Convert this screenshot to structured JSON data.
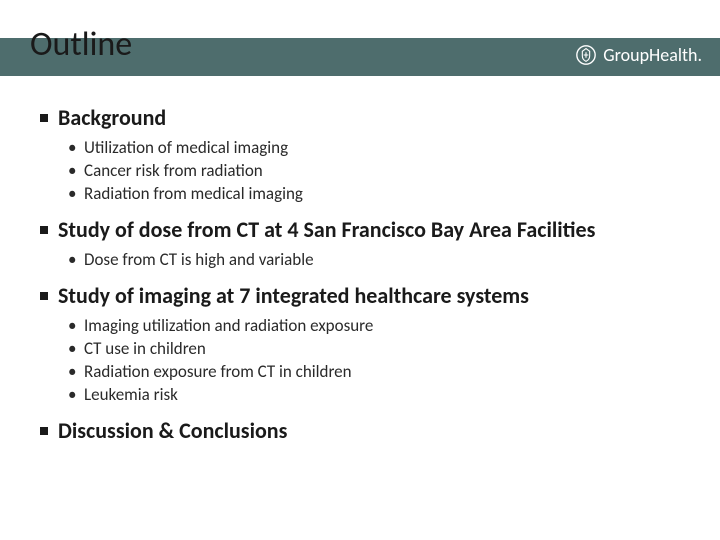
{
  "header": {
    "title": "Outline",
    "brand_text": "GroupHealth.",
    "band_color": "#4e6d6d",
    "title_color": "#1a1a1a",
    "brand_color": "#ffffff"
  },
  "sections": [
    {
      "heading": "Background",
      "items": [
        "Utilization of medical imaging",
        "Cancer risk from radiation",
        "Radiation from medical imaging"
      ]
    },
    {
      "heading": "Study of dose from CT at 4 San Francisco Bay Area Facilities",
      "items": [
        "Dose from CT is high and variable"
      ]
    },
    {
      "heading": "Study of imaging at 7 integrated healthcare systems",
      "items": [
        "Imaging utilization and radiation exposure",
        "CT use in children",
        "Radiation exposure from CT in children",
        "Leukemia risk"
      ]
    },
    {
      "heading": "Discussion & Conclusions",
      "items": []
    }
  ],
  "typography": {
    "title_fontsize": 34,
    "heading_fontsize": 22,
    "item_fontsize": 17
  },
  "colors": {
    "background": "#ffffff",
    "text": "#1a1a1a",
    "subtext": "#2a2a2a"
  }
}
